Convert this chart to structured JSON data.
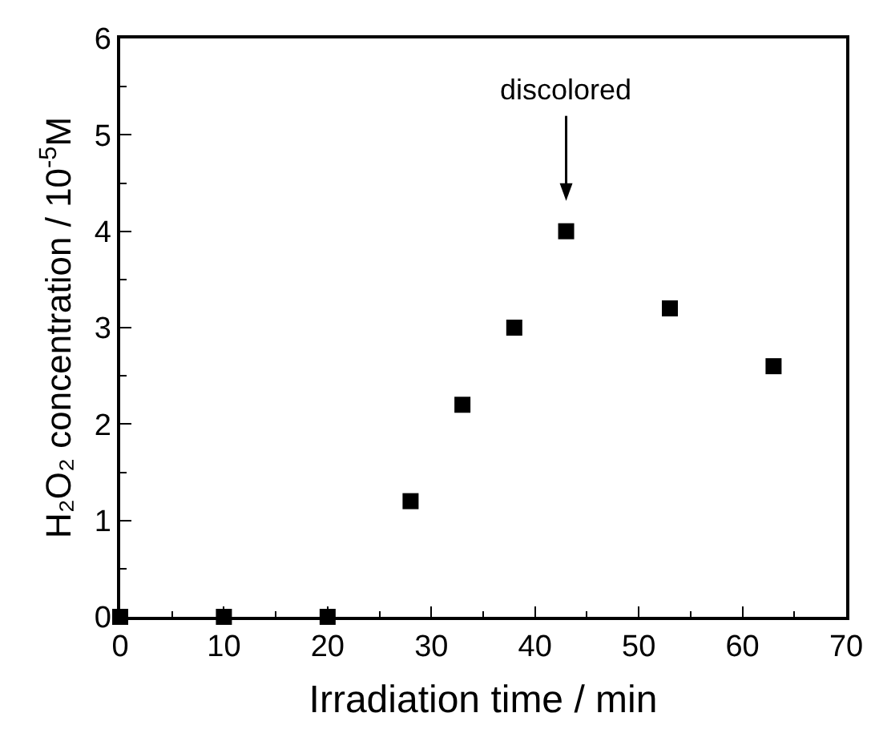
{
  "chart_data": {
    "type": "scatter",
    "xlabel": "Irradiation time / min",
    "ylabel": "H₂O₂ concentration / 10$^{-5}$M",
    "x": [
      0,
      10,
      20,
      28,
      33,
      38,
      43,
      53,
      63
    ],
    "series": [
      {
        "color": "#000000",
        "values": [
          0,
          0,
          0,
          1.2,
          2.2,
          3.0,
          4.0,
          3.2,
          2.6
        ]
      }
    ],
    "xlim": [
      0,
      70
    ],
    "xticks": [
      0,
      10,
      20,
      30,
      40,
      50,
      60,
      70
    ],
    "ylim": [
      0,
      6
    ],
    "yticks": [
      0,
      1,
      2,
      3,
      4,
      5,
      6
    ],
    "annotations": [
      "discolored"
    ],
    "marker": "square"
  }
}
